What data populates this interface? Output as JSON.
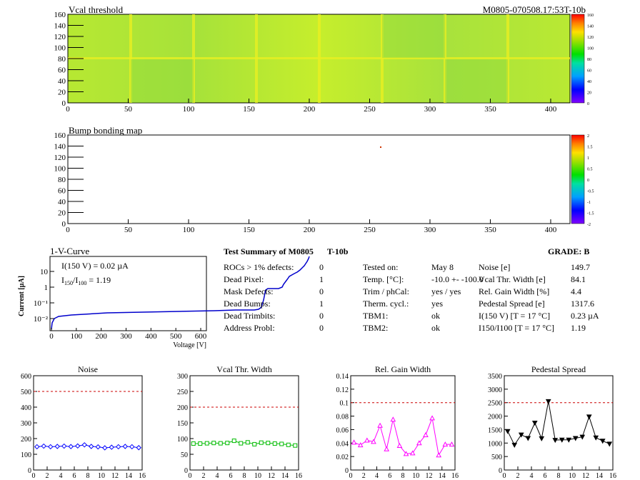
{
  "header": {
    "map_title": "Vcal threshold",
    "module_label": "M0805-070508.17:53T-10b",
    "bump_title": "Bump bonding map"
  },
  "heatmap_vcal": {
    "x_ticks": [
      "0",
      "50",
      "100",
      "150",
      "200",
      "250",
      "300",
      "350",
      "400"
    ],
    "y_ticks": [
      "0",
      "20",
      "40",
      "60",
      "80",
      "100",
      "120",
      "140",
      "160"
    ],
    "palette_ticks": [
      "160",
      "140",
      "120",
      "100",
      "80",
      "60",
      "40",
      "20",
      "0"
    ]
  },
  "heatmap_bump": {
    "x_ticks": [
      "0",
      "50",
      "100",
      "150",
      "200",
      "250",
      "300",
      "350",
      "400"
    ],
    "y_ticks": [
      "0",
      "20",
      "40",
      "60",
      "80",
      "100",
      "120",
      "140",
      "160"
    ],
    "palette_ticks": [
      "2",
      "1.5",
      "1",
      "0.5",
      "0",
      "-0.5",
      "-1",
      "-1.5",
      "-2"
    ]
  },
  "iv": {
    "title": "1-V-Curve",
    "ylabel": "Current [µA]",
    "xlabel": "Voltage [V]",
    "annot1": "I(150 V) = 0.02 µA",
    "annot2_main": "I",
    "annot2_sub1": "150",
    "annot2_mid": "/I",
    "annot2_sub2": "100",
    "annot2_val": " =  1.19",
    "x_ticks": [
      "0",
      "100",
      "200",
      "300",
      "400",
      "500",
      "600"
    ],
    "y_ticks": [
      "10⁻²",
      "10⁻¹",
      "1",
      "10"
    ]
  },
  "summary": {
    "title": "Test Summary of M0805",
    "subtitle": "T-10b",
    "grade_label": "GRADE:  B",
    "left": [
      {
        "label": "ROCs > 1% defects:",
        "value": "0"
      },
      {
        "label": "Dead Pixel:",
        "value": "1"
      },
      {
        "label": "Mask Defects:",
        "value": "0"
      },
      {
        "label": "Dead Bumps:",
        "value": "1"
      },
      {
        "label": "Dead Trimbits:",
        "value": "0"
      },
      {
        "label": "Address Probl:",
        "value": "0"
      }
    ],
    "middle": [
      {
        "label": "Tested on:",
        "value": "May 8"
      },
      {
        "label": "Temp. [°C]:",
        "value": "-10.0 +- -100.0"
      },
      {
        "label": "Trim / phCal:",
        "value": "yes / yes"
      },
      {
        "label": "Therm. cycl.:",
        "value": "yes"
      },
      {
        "label": "TBM1:",
        "value": "ok"
      },
      {
        "label": "TBM2:",
        "value": "ok"
      }
    ],
    "right": [
      {
        "label": "Noise [e]",
        "value": "149.7"
      },
      {
        "label": "Vcal Thr. Width [e]",
        "value": "84.1"
      },
      {
        "label": "Rel. Gain Width [%]",
        "value": "4.4"
      },
      {
        "label": "Pedestal Spread [e]",
        "value": "1317.6"
      },
      {
        "label": "I(150 V) [T = 17 °C]",
        "value": "0.23 µA"
      },
      {
        "label": "I150/I100  [T = 17 °C]",
        "value": "1.19"
      }
    ]
  },
  "chart_data": [
    {
      "type": "line",
      "title": "Noise",
      "x": [
        0,
        1,
        2,
        3,
        4,
        5,
        6,
        7,
        8,
        9,
        10,
        11,
        12,
        13,
        14,
        15
      ],
      "values": [
        148,
        152,
        148,
        150,
        152,
        149,
        153,
        160,
        150,
        147,
        141,
        145,
        148,
        150,
        148,
        142
      ],
      "ylim": [
        0,
        600
      ],
      "reference": 500,
      "color": "#0000ff",
      "marker": "diamond",
      "y_ticks": [
        "0",
        "100",
        "200",
        "300",
        "400",
        "500",
        "600"
      ],
      "x_ticks": [
        "0",
        "2",
        "4",
        "6",
        "8",
        "10",
        "12",
        "14",
        "16"
      ]
    },
    {
      "type": "line",
      "title": "Vcal Thr. Width",
      "x": [
        0,
        1,
        2,
        3,
        4,
        5,
        6,
        7,
        8,
        9,
        10,
        11,
        12,
        13,
        14,
        15
      ],
      "values": [
        84,
        84,
        85,
        86,
        85,
        86,
        93,
        85,
        88,
        82,
        87,
        86,
        84,
        83,
        80,
        78
      ],
      "ylim": [
        0,
        300
      ],
      "reference": 200,
      "color": "#00bb00",
      "marker": "square",
      "y_ticks": [
        "0",
        "50",
        "100",
        "150",
        "200",
        "250",
        "300"
      ],
      "x_ticks": [
        "0",
        "2",
        "4",
        "6",
        "8",
        "10",
        "12",
        "14",
        "16"
      ]
    },
    {
      "type": "line",
      "title": "Rel. Gain Width",
      "x": [
        0,
        1,
        2,
        3,
        4,
        5,
        6,
        7,
        8,
        9,
        10,
        11,
        12,
        13,
        14,
        15
      ],
      "values": [
        0.041,
        0.037,
        0.044,
        0.042,
        0.066,
        0.031,
        0.075,
        0.036,
        0.024,
        0.025,
        0.04,
        0.052,
        0.077,
        0.022,
        0.038,
        0.038
      ],
      "ylim": [
        0,
        0.14
      ],
      "reference": 0.1,
      "color": "#ff00ff",
      "marker": "triangle-up",
      "y_ticks": [
        "0",
        "0.02",
        "0.04",
        "0.06",
        "0.08",
        "0.1",
        "0.12",
        "0.14"
      ],
      "x_ticks": [
        "0",
        "2",
        "4",
        "6",
        "8",
        "10",
        "12",
        "14",
        "16"
      ]
    },
    {
      "type": "line",
      "title": "Pedestal Spread",
      "x": [
        0,
        1,
        2,
        3,
        4,
        5,
        6,
        7,
        8,
        9,
        10,
        11,
        12,
        13,
        14,
        15
      ],
      "values": [
        1440,
        930,
        1310,
        1180,
        1750,
        1170,
        2550,
        1110,
        1120,
        1120,
        1180,
        1230,
        1980,
        1200,
        1080,
        970
      ],
      "ylim": [
        0,
        3500
      ],
      "reference": 2500,
      "color": "#000000",
      "marker": "triangle-down",
      "y_ticks": [
        "0",
        "500",
        "1000",
        "1500",
        "2000",
        "2500",
        "3000",
        "3500"
      ],
      "x_ticks": [
        "0",
        "2",
        "4",
        "6",
        "8",
        "10",
        "12",
        "14",
        "16"
      ]
    }
  ]
}
